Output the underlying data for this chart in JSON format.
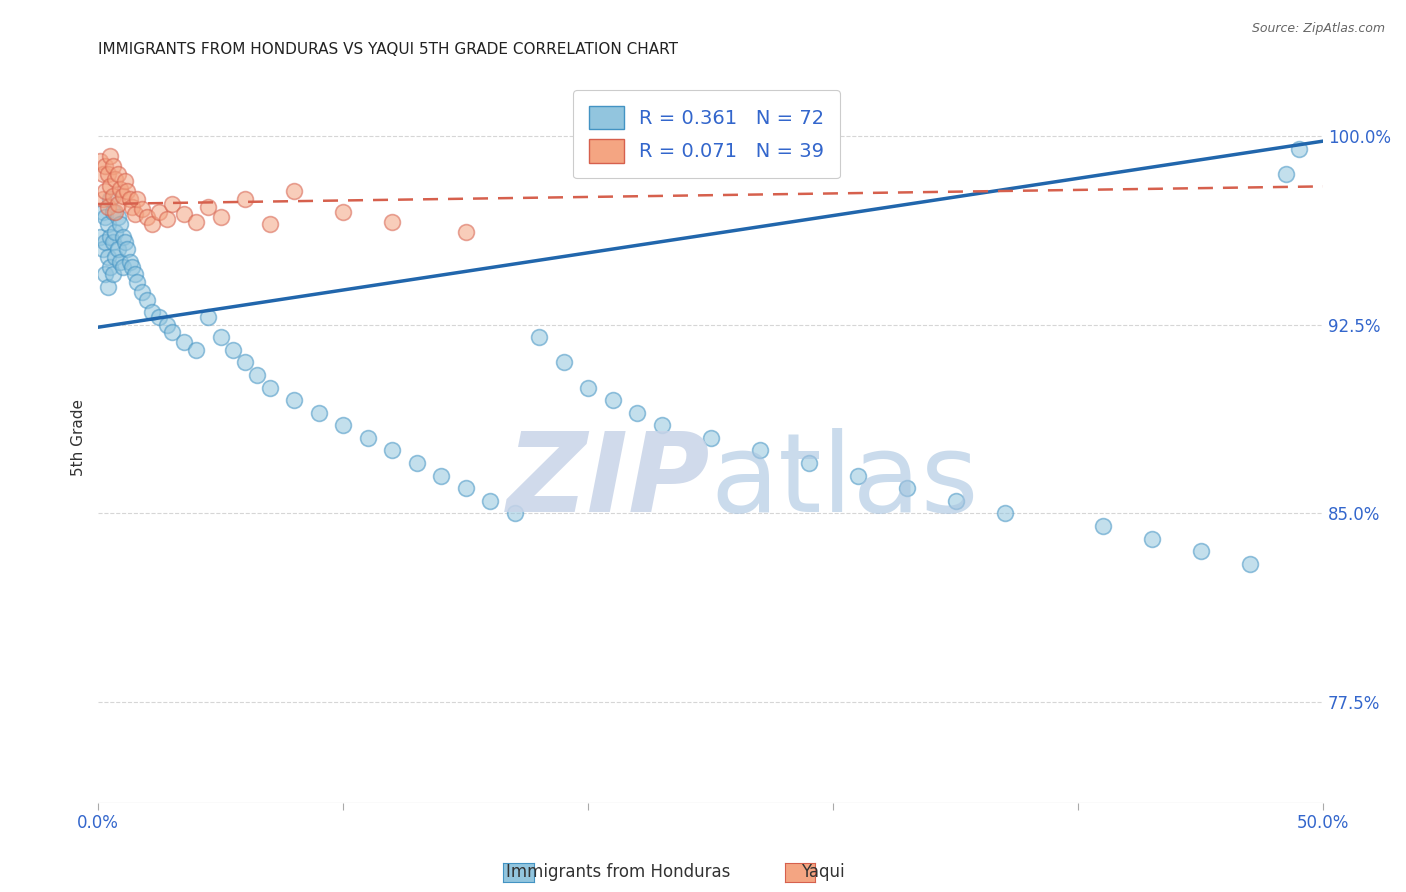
{
  "title": "IMMIGRANTS FROM HONDURAS VS YAQUI 5TH GRADE CORRELATION CHART",
  "source": "Source: ZipAtlas.com",
  "ylabel": "5th Grade",
  "y_tick_vals": [
    0.775,
    0.85,
    0.925,
    1.0
  ],
  "y_tick_labels": [
    "77.5%",
    "85.0%",
    "92.5%",
    "100.0%"
  ],
  "y_min": 0.735,
  "y_max": 1.025,
  "x_min": 0.0,
  "x_max": 0.5,
  "blue_color": "#92c5de",
  "blue_edge_color": "#4393c3",
  "blue_line_color": "#2166ac",
  "pink_color": "#f4a582",
  "pink_edge_color": "#d6604d",
  "pink_line_color": "#d6604d",
  "legend_blue_R": "0.361",
  "legend_blue_N": "72",
  "legend_pink_R": "0.071",
  "legend_pink_N": "39",
  "blue_line_x0": 0.0,
  "blue_line_x1": 0.5,
  "blue_line_y0": 0.924,
  "blue_line_y1": 0.998,
  "pink_line_x0": 0.0,
  "pink_line_x1": 0.5,
  "pink_line_y0": 0.973,
  "pink_line_y1": 0.98,
  "blue_scatter_x": [
    0.001,
    0.002,
    0.002,
    0.003,
    0.003,
    0.003,
    0.004,
    0.004,
    0.004,
    0.005,
    0.005,
    0.005,
    0.006,
    0.006,
    0.006,
    0.007,
    0.007,
    0.008,
    0.008,
    0.009,
    0.009,
    0.01,
    0.01,
    0.011,
    0.012,
    0.013,
    0.014,
    0.015,
    0.016,
    0.018,
    0.02,
    0.022,
    0.025,
    0.028,
    0.03,
    0.035,
    0.04,
    0.045,
    0.05,
    0.055,
    0.06,
    0.065,
    0.07,
    0.08,
    0.09,
    0.1,
    0.11,
    0.12,
    0.13,
    0.14,
    0.15,
    0.16,
    0.17,
    0.18,
    0.19,
    0.2,
    0.21,
    0.22,
    0.23,
    0.25,
    0.27,
    0.29,
    0.31,
    0.33,
    0.35,
    0.37,
    0.41,
    0.43,
    0.45,
    0.47,
    0.485,
    0.49
  ],
  "blue_scatter_y": [
    0.96,
    0.97,
    0.955,
    0.968,
    0.958,
    0.945,
    0.965,
    0.952,
    0.94,
    0.975,
    0.96,
    0.948,
    0.97,
    0.958,
    0.945,
    0.962,
    0.952,
    0.968,
    0.955,
    0.965,
    0.95,
    0.96,
    0.948,
    0.958,
    0.955,
    0.95,
    0.948,
    0.945,
    0.942,
    0.938,
    0.935,
    0.93,
    0.928,
    0.925,
    0.922,
    0.918,
    0.915,
    0.928,
    0.92,
    0.915,
    0.91,
    0.905,
    0.9,
    0.895,
    0.89,
    0.885,
    0.88,
    0.875,
    0.87,
    0.865,
    0.86,
    0.855,
    0.85,
    0.92,
    0.91,
    0.9,
    0.895,
    0.89,
    0.885,
    0.88,
    0.875,
    0.87,
    0.865,
    0.86,
    0.855,
    0.85,
    0.845,
    0.84,
    0.835,
    0.83,
    0.985,
    0.995
  ],
  "pink_scatter_x": [
    0.001,
    0.002,
    0.002,
    0.003,
    0.003,
    0.004,
    0.004,
    0.005,
    0.005,
    0.006,
    0.006,
    0.007,
    0.007,
    0.008,
    0.008,
    0.009,
    0.01,
    0.011,
    0.012,
    0.013,
    0.014,
    0.015,
    0.016,
    0.018,
    0.02,
    0.022,
    0.025,
    0.028,
    0.03,
    0.035,
    0.04,
    0.045,
    0.05,
    0.06,
    0.07,
    0.08,
    0.1,
    0.12,
    0.15
  ],
  "pink_scatter_y": [
    0.99,
    0.985,
    0.975,
    0.988,
    0.978,
    0.985,
    0.972,
    0.992,
    0.98,
    0.988,
    0.976,
    0.983,
    0.97,
    0.985,
    0.973,
    0.979,
    0.976,
    0.982,
    0.978,
    0.975,
    0.972,
    0.969,
    0.975,
    0.971,
    0.968,
    0.965,
    0.97,
    0.967,
    0.973,
    0.969,
    0.966,
    0.972,
    0.968,
    0.975,
    0.965,
    0.978,
    0.97,
    0.966,
    0.962
  ],
  "background_color": "#ffffff",
  "grid_color": "#cccccc",
  "title_fontsize": 11,
  "tick_label_color": "#3366cc",
  "legend_label_color": "#3366cc",
  "watermark_zip_color": "#c8d4e8",
  "watermark_atlas_color": "#a8c4e0"
}
